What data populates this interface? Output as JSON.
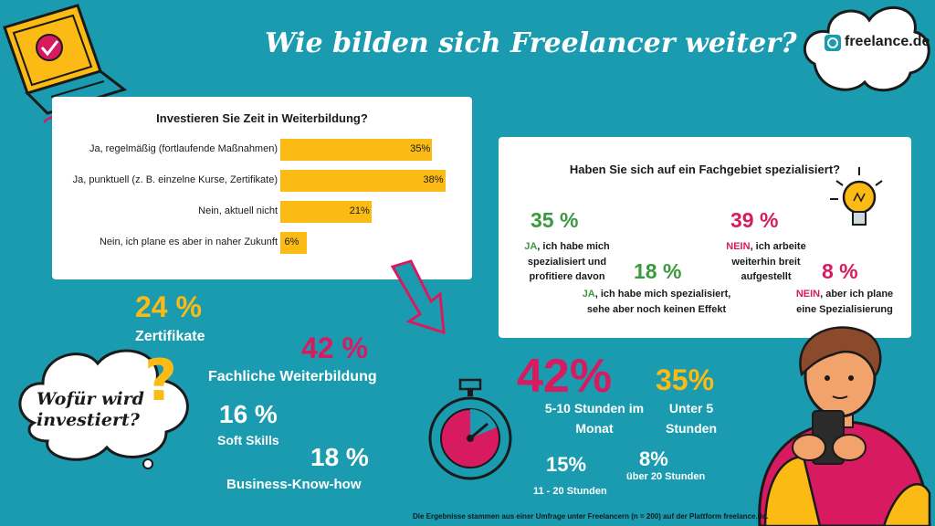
{
  "title": "Wie bilden sich Freelancer weiter?",
  "logo": {
    "text": "freelance.de"
  },
  "footnote": "Die Ergebnisse stammen aus einer Umfrage unter Freelancern (n = 200) auf der Plattform freelance.de.",
  "colors": {
    "background": "#1a9bb0",
    "yellow": "#fbbb14",
    "pink": "#d81b60",
    "green": "#3a9a3e",
    "white": "#ffffff"
  },
  "chart_data": [
    {
      "type": "bar",
      "title": "Investieren Sie Zeit in Weiterbildung?",
      "categories": [
        "Ja, regelmäßig (fortlaufende Maßnahmen)",
        "Ja, punktuell (z. B. einzelne Kurse, Zertifikate)",
        "Nein, aktuell nicht",
        "Nein, ich plane es aber in naher Zukunft"
      ],
      "values": [
        35,
        38,
        21,
        6
      ],
      "value_labels": [
        "35%",
        "38%",
        "21%",
        "6%"
      ],
      "orientation": "horizontal",
      "xlim": [
        0,
        40
      ]
    },
    {
      "type": "table",
      "title": "Haben Sie sich  auf ein Fachgebiet spezialisiert?",
      "items": [
        {
          "value": "35 %",
          "label_strong": "JA",
          "label": ", ich habe mich spezialisiert und profitiere davon",
          "color": "#3a9a3e"
        },
        {
          "value": "18 %",
          "label_strong": "JA",
          "label": ", ich habe mich spezialisiert, sehe aber noch keinen Effekt",
          "color": "#3a9a3e"
        },
        {
          "value": "39 %",
          "label_strong": "NEIN",
          "label": ", ich arbeite weiterhin breit aufgestellt",
          "color": "#d81b60"
        },
        {
          "value": "8 %",
          "label_strong": "NEIN",
          "label": ", aber ich plane eine Spezialisierung",
          "color": "#d81b60"
        }
      ]
    },
    {
      "type": "table",
      "title": "Wofür wird investiert?",
      "items": [
        {
          "value": "24 %",
          "label": "Zertifikate"
        },
        {
          "value": "42 %",
          "label": "Fachliche Weiterbildung"
        },
        {
          "value": "16 %",
          "label": "Soft Skills"
        },
        {
          "value": "18 %",
          "label": "Business-Know-how"
        }
      ]
    },
    {
      "type": "table",
      "items": [
        {
          "value": "42%",
          "label": "5-10 Stunden im Monat"
        },
        {
          "value": "35%",
          "label": "Unter 5 Stunden"
        },
        {
          "value": "15%",
          "label": "11 - 20 Stunden"
        },
        {
          "value": "8%",
          "label": "über 20 Stunden"
        }
      ]
    }
  ]
}
